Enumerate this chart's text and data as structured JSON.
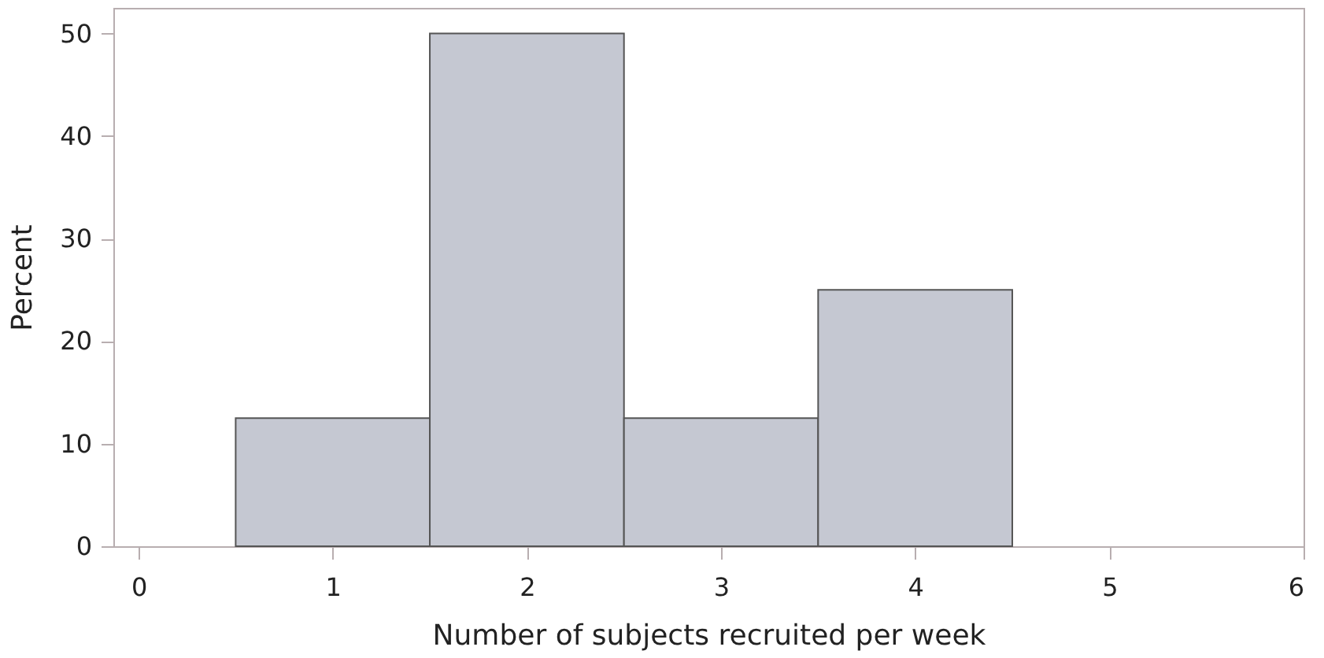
{
  "chart_data": {
    "type": "histogram",
    "xlabel": "Number of subjects recruited per week",
    "ylabel": "Percent",
    "bins": [
      0.5,
      1.5,
      2.5,
      3.5,
      4.5
    ],
    "values": [
      12.5,
      50,
      12.5,
      25
    ],
    "color": "#c5c8d2",
    "xlim": [
      -0.13,
      6
    ],
    "xticks": [
      0,
      1,
      2,
      3,
      4,
      5,
      6
    ],
    "ylim": [
      0,
      52.5
    ],
    "yticks": [
      0,
      10,
      20,
      30,
      40,
      50
    ],
    "grid": false
  }
}
